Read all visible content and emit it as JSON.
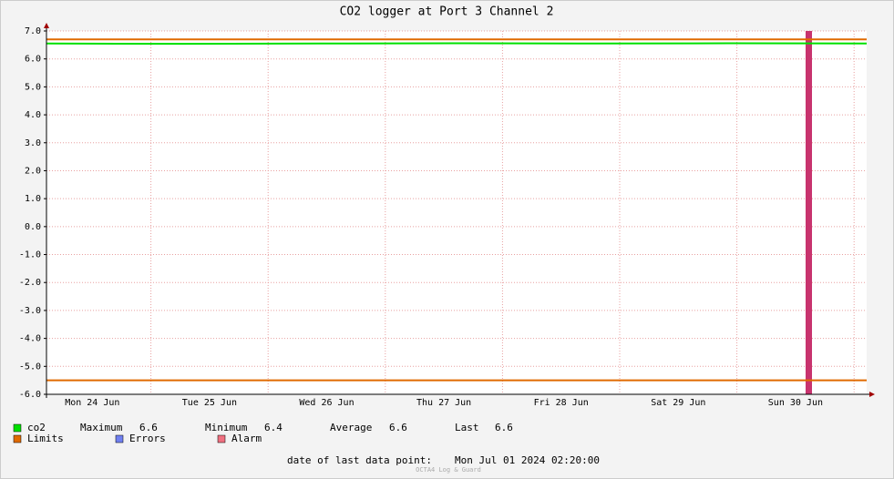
{
  "chart_data": {
    "type": "line",
    "title": "CO2 logger at Port 3 Channel 2",
    "categories": [
      "Mon 24 Jun",
      "Tue 25 Jun",
      "Wed 26 Jun",
      "Thu 27 Jun",
      "Fri 28 Jun",
      "Sat 29 Jun",
      "Sun 30 Jun"
    ],
    "series": [
      {
        "name": "co2",
        "color": "#00e000",
        "values": [
          6.55,
          6.54,
          6.55,
          6.56,
          6.55,
          6.56,
          6.55
        ]
      }
    ],
    "limits": {
      "name": "Limits",
      "color": "#e06a00",
      "values": [
        6.7,
        -5.5
      ]
    },
    "errors": {
      "name": "Errors",
      "color": "#7080f0"
    },
    "alarm": {
      "name": "Alarm",
      "color": "#f07080"
    },
    "ylim": [
      -6,
      7
    ],
    "yticks": [
      {
        "value": 7,
        "label": "7.0"
      },
      {
        "value": 6,
        "label": "6.0"
      },
      {
        "value": 5,
        "label": "5.0"
      },
      {
        "value": 4,
        "label": "4.0"
      },
      {
        "value": 3,
        "label": "3.0"
      },
      {
        "value": 2,
        "label": "2.0"
      },
      {
        "value": 1,
        "label": "1.0"
      },
      {
        "value": 0,
        "label": "0.0"
      },
      {
        "value": -1,
        "label": "-1.0"
      },
      {
        "value": -2,
        "label": "-2.0"
      },
      {
        "value": -3,
        "label": "-3.0"
      },
      {
        "value": -4,
        "label": "-4.0"
      },
      {
        "value": -5,
        "label": "-5.0"
      },
      {
        "value": -6,
        "label": "-6.0"
      }
    ],
    "grid": true,
    "stats": [
      {
        "label": "Maximum",
        "value": 6.6
      },
      {
        "label": "Minimum",
        "value": 6.4
      },
      {
        "label": "Average",
        "value": 6.6
      },
      {
        "label": "Last",
        "value": 6.6
      }
    ],
    "footer": {
      "label": "date of last data point:",
      "date": "Mon Jul 01 2024 02:20:00"
    },
    "credit": "OCTA4 Log & Guard"
  }
}
